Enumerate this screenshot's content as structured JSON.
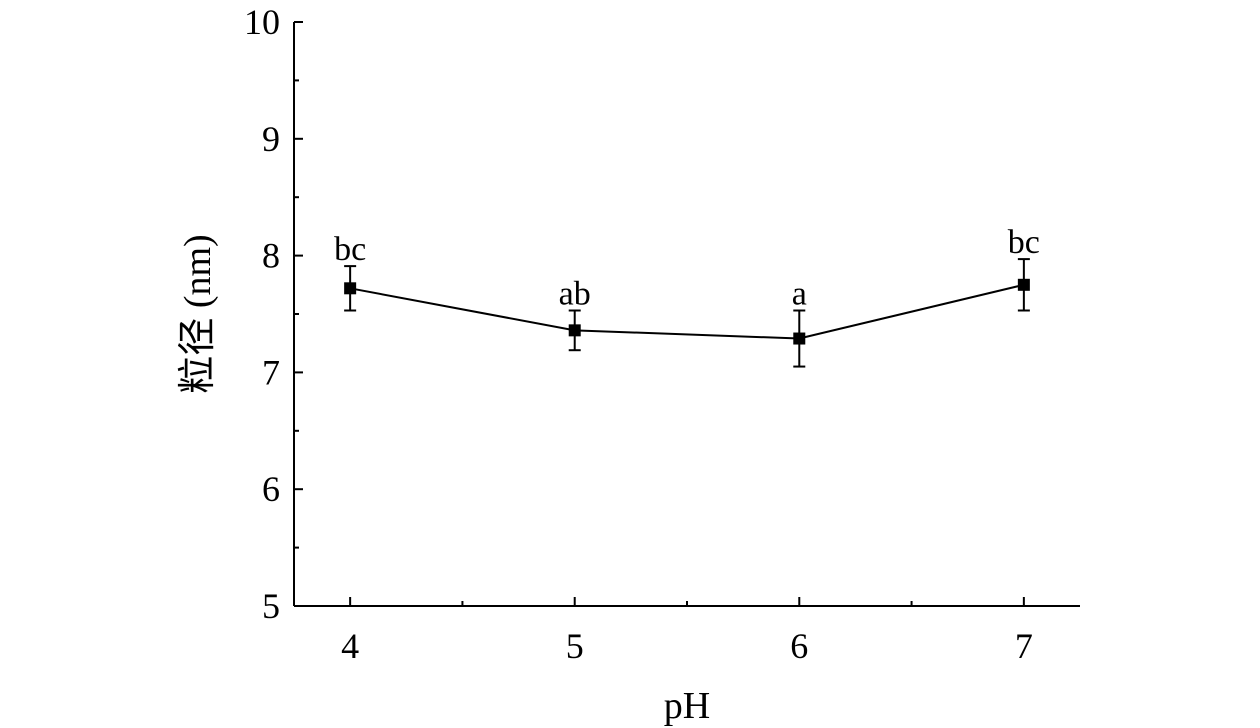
{
  "chart_data": {
    "type": "line",
    "x": [
      4,
      5,
      6,
      7
    ],
    "y": [
      7.72,
      7.36,
      7.29,
      7.75
    ],
    "error": [
      0.19,
      0.17,
      0.24,
      0.22
    ],
    "significance_labels": [
      "bc",
      "ab",
      "a",
      "bc"
    ],
    "xlabel": "pH",
    "ylabel": "粒径 (nm)",
    "xlim": [
      3.75,
      7.25
    ],
    "ylim": [
      5,
      10
    ],
    "x_ticks": [
      "4",
      "5",
      "6",
      "7"
    ],
    "y_ticks": [
      "5",
      "6",
      "7",
      "8",
      "9",
      "10"
    ],
    "grid": false,
    "marker": "square",
    "color": "#000000"
  }
}
